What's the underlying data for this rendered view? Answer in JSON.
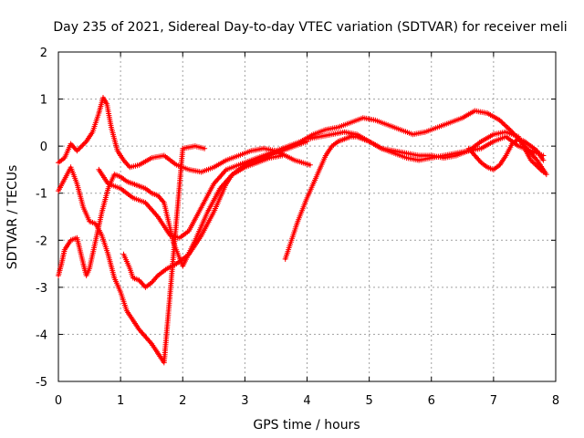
{
  "chart_data": {
    "type": "scatter",
    "title": "Day 235 of 2021, Sidereal Day-to-day VTEC variation (SDTVAR) for receiver meli",
    "xlabel": "GPS time / hours",
    "ylabel": "SDTVAR / TECUs",
    "xlim": [
      0,
      8
    ],
    "ylim": [
      -5,
      2
    ],
    "xticks": [
      "0",
      "1",
      "2",
      "3",
      "4",
      "5",
      "6",
      "7",
      "8"
    ],
    "yticks": [
      "-5",
      "-4",
      "-3",
      "-2",
      "-1",
      "0",
      "1",
      "2"
    ],
    "grid": true,
    "marker": "plus",
    "color": "#ff0000",
    "series": [
      {
        "x": [
          0,
          0.1,
          0.2,
          0.3,
          0.45,
          0.55,
          0.65,
          0.72,
          0.78,
          0.85,
          0.95,
          1.05,
          1.15,
          1.3,
          1.5,
          1.7,
          1.9,
          2.1,
          2.3,
          2.5,
          2.7,
          2.9,
          3.1,
          3.3,
          3.5,
          3.8,
          4.05
        ],
        "y": [
          -0.35,
          -0.25,
          0.05,
          -0.1,
          0.1,
          0.3,
          0.7,
          1.03,
          0.9,
          0.4,
          -0.1,
          -0.3,
          -0.45,
          -0.4,
          -0.25,
          -0.2,
          -0.4,
          -0.5,
          -0.55,
          -0.45,
          -0.3,
          -0.2,
          -0.1,
          -0.05,
          -0.1,
          -0.3,
          -0.4
        ]
      },
      {
        "x": [
          0,
          0.1,
          0.2,
          0.3,
          0.4,
          0.5,
          0.6,
          0.7,
          0.8,
          0.9,
          1.0,
          1.05,
          1.1,
          1.2,
          1.3,
          1.5,
          1.7,
          2.0,
          2.2,
          2.35
        ],
        "y": [
          -0.95,
          -0.7,
          -0.45,
          -0.8,
          -1.3,
          -1.6,
          -1.65,
          -1.9,
          -2.3,
          -2.8,
          -3.1,
          -3.3,
          -3.5,
          -3.7,
          -3.9,
          -4.2,
          -4.6,
          -0.05,
          0,
          -0.05
        ]
      },
      {
        "x": [
          0.65,
          0.8,
          1.0,
          1.2,
          1.4,
          1.6,
          1.8,
          1.95,
          2.1,
          2.3,
          2.5,
          2.7,
          2.9,
          3.1,
          3.3,
          3.5,
          3.7,
          3.9,
          4.1,
          4.3,
          4.5,
          4.7,
          4.9,
          5.1,
          5.3,
          5.5,
          5.7,
          5.9,
          6.1,
          6.3,
          6.5,
          6.7,
          6.9,
          7.1,
          7.3,
          7.5,
          7.7,
          7.85
        ],
        "y": [
          -0.5,
          -0.8,
          -0.9,
          -1.1,
          -1.2,
          -1.5,
          -1.9,
          -1.95,
          -1.8,
          -1.3,
          -0.8,
          -0.5,
          -0.4,
          -0.3,
          -0.2,
          -0.1,
          0,
          0.1,
          0.25,
          0.35,
          0.4,
          0.5,
          0.6,
          0.55,
          0.45,
          0.35,
          0.25,
          0.3,
          0.4,
          0.5,
          0.6,
          0.75,
          0.7,
          0.55,
          0.3,
          0.0,
          -0.3,
          -0.6
        ]
      },
      {
        "x": [
          0,
          0.05,
          0.1,
          0.2,
          0.3,
          0.4,
          0.45,
          0.5,
          0.6,
          0.7,
          0.8,
          0.9,
          1.0,
          1.1,
          1.2,
          1.3,
          1.4,
          1.5,
          1.6,
          1.7,
          1.85,
          2.0,
          2.2,
          2.4,
          2.6,
          2.8,
          3.0,
          3.2,
          3.4,
          3.6
        ],
        "y": [
          -2.75,
          -2.5,
          -2.2,
          -2.0,
          -1.95,
          -2.5,
          -2.75,
          -2.6,
          -2.0,
          -1.4,
          -0.9,
          -0.6,
          -0.65,
          -0.75,
          -0.8,
          -0.85,
          -0.9,
          -1.0,
          -1.05,
          -1.2,
          -2.05,
          -2.55,
          -2.0,
          -1.4,
          -0.9,
          -0.6,
          -0.45,
          -0.35,
          -0.25,
          -0.2
        ]
      },
      {
        "x": [
          1.05,
          1.15,
          1.2,
          1.3,
          1.4,
          1.5,
          1.6,
          1.75,
          1.9,
          2.1,
          2.3,
          2.5,
          2.6,
          2.7,
          2.8,
          2.9,
          3.0,
          3.2,
          3.4,
          3.6,
          3.8,
          4.0
        ],
        "y": [
          -2.3,
          -2.6,
          -2.8,
          -2.85,
          -3.0,
          -2.9,
          -2.75,
          -2.6,
          -2.5,
          -2.3,
          -1.9,
          -1.4,
          -1.1,
          -0.8,
          -0.6,
          -0.5,
          -0.4,
          -0.3,
          -0.2,
          -0.1,
          0.0,
          0.1
        ]
      },
      {
        "x": [
          3.65,
          3.75,
          3.85,
          4.0,
          4.1,
          4.2,
          4.3,
          4.4,
          4.5,
          4.6,
          4.7,
          4.8,
          4.9,
          5.0,
          5.2,
          5.4,
          5.6,
          5.8,
          6.0,
          6.2,
          6.4,
          6.6,
          6.8,
          7.0,
          7.2,
          7.4,
          7.6,
          7.8
        ],
        "y": [
          -2.4,
          -2.0,
          -1.6,
          -1.1,
          -0.8,
          -0.5,
          -0.2,
          0.0,
          0.1,
          0.15,
          0.2,
          0.2,
          0.15,
          0.1,
          -0.05,
          -0.1,
          -0.15,
          -0.2,
          -0.2,
          -0.25,
          -0.2,
          -0.1,
          0.1,
          0.25,
          0.3,
          0.2,
          -0.3,
          -0.55
        ]
      },
      {
        "x": [
          4.0,
          4.2,
          4.4,
          4.6,
          4.8,
          5.0,
          5.2,
          5.4,
          5.6,
          5.8,
          6.0,
          6.2,
          6.4,
          6.6,
          6.8,
          7.0,
          7.2,
          7.4,
          7.6,
          7.8
        ],
        "y": [
          0.15,
          0.2,
          0.25,
          0.3,
          0.25,
          0.1,
          -0.05,
          -0.15,
          -0.25,
          -0.3,
          -0.25,
          -0.2,
          -0.15,
          -0.1,
          -0.05,
          0.1,
          0.2,
          0.0,
          -0.1,
          -0.2
        ]
      },
      {
        "x": [
          6.6,
          6.8,
          6.9,
          7.0,
          7.1,
          7.2,
          7.3,
          7.4,
          7.5,
          7.6,
          7.7,
          7.8
        ],
        "y": [
          -0.05,
          -0.35,
          -0.45,
          -0.5,
          -0.4,
          -0.2,
          0.05,
          0.15,
          0.1,
          0.0,
          -0.1,
          -0.3
        ]
      }
    ]
  }
}
